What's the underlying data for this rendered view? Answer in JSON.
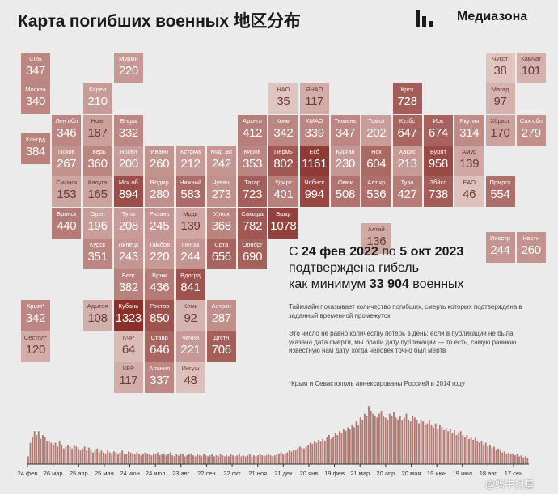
{
  "title": "Карта погибших военных 地区分布",
  "brand": "Медиазона",
  "headline": {
    "l1a": "С ",
    "d1": "24 фев 2022",
    "l1b": " по ",
    "d2": "5 окт 2023",
    "l2": "подтверждена гибель",
    "l3a": "как минимум ",
    "total": "33 904",
    "l3b": " военных"
  },
  "notes": {
    "n1": "Таймлайн показывает количество погибших, смерть которых подтверждена в заданный временной промежуток",
    "n2": "Это число не равно количеству потерь в день: если в публикации не была указана дата смерти, мы брали дату публикации — то есть, самую раннюю известную нам дату, когда человек точно был мертв",
    "n3": "*Крым и Севастополь аннексированы Россией в 2014 году"
  },
  "watermark": "@蚂牛柯基",
  "colors": {
    "light": "#f0e2de",
    "dark": "#8a2f2a",
    "bar": "#b07a72",
    "bg": "#ebebeb"
  },
  "regions": [
    {
      "abbr": "СПБ",
      "value": 347,
      "col": 0,
      "row": 0
    },
    {
      "abbr": "Мурмн",
      "value": 220,
      "col": 3,
      "row": 0
    },
    {
      "abbr": "Чукот",
      "value": 38,
      "col": 15,
      "row": 0
    },
    {
      "abbr": "Камчат",
      "value": 101,
      "col": 16,
      "row": 0
    },
    {
      "abbr": "Москва",
      "value": 340,
      "col": 0,
      "row": 1
    },
    {
      "abbr": "Карел",
      "value": 210,
      "col": 2,
      "row": 1
    },
    {
      "abbr": "НАО",
      "value": 35,
      "col": 8,
      "row": 1
    },
    {
      "abbr": "ЯНАО",
      "value": 117,
      "col": 9,
      "row": 1
    },
    {
      "abbr": "Крск",
      "value": 728,
      "col": 12,
      "row": 1
    },
    {
      "abbr": "Магад",
      "value": 97,
      "col": 15,
      "row": 1
    },
    {
      "abbr": "Лен обл",
      "value": 346,
      "col": 1,
      "row": 2
    },
    {
      "abbr": "Новг",
      "value": 187,
      "col": 2,
      "row": 2
    },
    {
      "abbr": "Влгда",
      "value": 332,
      "col": 3,
      "row": 2
    },
    {
      "abbr": "Архнгл",
      "value": 412,
      "col": 7,
      "row": 2
    },
    {
      "abbr": "Коми",
      "value": 342,
      "col": 8,
      "row": 2
    },
    {
      "abbr": "ХМАО",
      "value": 339,
      "col": 9,
      "row": 2
    },
    {
      "abbr": "Тюмень",
      "value": 347,
      "col": 10,
      "row": 2
    },
    {
      "abbr": "Томск",
      "value": 202,
      "col": 11,
      "row": 2
    },
    {
      "abbr": "Кузбс",
      "value": 647,
      "col": 12,
      "row": 2
    },
    {
      "abbr": "Ирк",
      "value": 674,
      "col": 13,
      "row": 2
    },
    {
      "abbr": "Якутия",
      "value": 314,
      "col": 14,
      "row": 2
    },
    {
      "abbr": "Хбрвск",
      "value": 170,
      "col": 15,
      "row": 2
    },
    {
      "abbr": "Сах обл",
      "value": 279,
      "col": 16,
      "row": 2
    },
    {
      "abbr": "Клнгрд",
      "value": 384,
      "col": 0,
      "row": 2.6
    },
    {
      "abbr": "Псков",
      "value": 267,
      "col": 1,
      "row": 3
    },
    {
      "abbr": "Тверь",
      "value": 360,
      "col": 2,
      "row": 3
    },
    {
      "abbr": "Ярсвл",
      "value": 200,
      "col": 3,
      "row": 3
    },
    {
      "abbr": "Ивано",
      "value": 260,
      "col": 4,
      "row": 3
    },
    {
      "abbr": "Кстрма",
      "value": 212,
      "col": 5,
      "row": 3
    },
    {
      "abbr": "Мар Эл",
      "value": 242,
      "col": 6,
      "row": 3
    },
    {
      "abbr": "Киров",
      "value": 353,
      "col": 7,
      "row": 3
    },
    {
      "abbr": "Пермь",
      "value": 802,
      "col": 8,
      "row": 3
    },
    {
      "abbr": "Екб",
      "value": 1161,
      "col": 9,
      "row": 3
    },
    {
      "abbr": "Курган",
      "value": 230,
      "col": 10,
      "row": 3
    },
    {
      "abbr": "Нск",
      "value": 604,
      "col": 11,
      "row": 3
    },
    {
      "abbr": "Хакас",
      "value": 213,
      "col": 12,
      "row": 3
    },
    {
      "abbr": "Бурят",
      "value": 958,
      "col": 13,
      "row": 3
    },
    {
      "abbr": "Амур",
      "value": 139,
      "col": 14,
      "row": 3
    },
    {
      "abbr": "Смлнск",
      "value": 153,
      "col": 1,
      "row": 4
    },
    {
      "abbr": "Калуга",
      "value": 165,
      "col": 2,
      "row": 4
    },
    {
      "abbr": "Мск об",
      "value": 894,
      "col": 3,
      "row": 4
    },
    {
      "abbr": "Влдмр",
      "value": 280,
      "col": 4,
      "row": 4
    },
    {
      "abbr": "Нижний",
      "value": 583,
      "col": 5,
      "row": 4
    },
    {
      "abbr": "Чуваш",
      "value": 273,
      "col": 6,
      "row": 4
    },
    {
      "abbr": "Татар",
      "value": 723,
      "col": 7,
      "row": 4
    },
    {
      "abbr": "Удмрт",
      "value": 401,
      "col": 8,
      "row": 4
    },
    {
      "abbr": "Члбнск",
      "value": 994,
      "col": 9,
      "row": 4
    },
    {
      "abbr": "Омск",
      "value": 508,
      "col": 10,
      "row": 4
    },
    {
      "abbr": "Алт кр",
      "value": 536,
      "col": 11,
      "row": 4
    },
    {
      "abbr": "Тува",
      "value": 427,
      "col": 12,
      "row": 4
    },
    {
      "abbr": "Збйкл",
      "value": 738,
      "col": 13,
      "row": 4
    },
    {
      "abbr": "ЕАО",
      "value": 46,
      "col": 14,
      "row": 4
    },
    {
      "abbr": "Прмрск",
      "value": 554,
      "col": 15,
      "row": 4
    },
    {
      "abbr": "Брянск",
      "value": 440,
      "col": 1,
      "row": 5
    },
    {
      "abbr": "Орел",
      "value": 196,
      "col": 2,
      "row": 5
    },
    {
      "abbr": "Тула",
      "value": 208,
      "col": 3,
      "row": 5
    },
    {
      "abbr": "Рязань",
      "value": 245,
      "col": 4,
      "row": 5
    },
    {
      "abbr": "Мрдв",
      "value": 139,
      "col": 5,
      "row": 5
    },
    {
      "abbr": "Улнск",
      "value": 368,
      "col": 6,
      "row": 5
    },
    {
      "abbr": "Самара",
      "value": 782,
      "col": 7,
      "row": 5
    },
    {
      "abbr": "Бшкр",
      "value": 1078,
      "col": 8,
      "row": 5
    },
    {
      "abbr": "Алтай",
      "value": 136,
      "col": 11,
      "row": 5.5
    },
    {
      "abbr": "Иностр",
      "value": 244,
      "col": 15,
      "row": 5.8
    },
    {
      "abbr": "Нвстн",
      "value": 260,
      "col": 16,
      "row": 5.8
    },
    {
      "abbr": "Курск",
      "value": 351,
      "col": 2,
      "row": 6
    },
    {
      "abbr": "Липецк",
      "value": 243,
      "col": 3,
      "row": 6
    },
    {
      "abbr": "Тамбов",
      "value": 220,
      "col": 4,
      "row": 6
    },
    {
      "abbr": "Пенза",
      "value": 244,
      "col": 5,
      "row": 6
    },
    {
      "abbr": "Срта",
      "value": 656,
      "col": 6,
      "row": 6
    },
    {
      "abbr": "Орнбрг",
      "value": 690,
      "col": 7,
      "row": 6
    },
    {
      "abbr": "Белг",
      "value": 382,
      "col": 3,
      "row": 7
    },
    {
      "abbr": "Врнж",
      "value": 436,
      "col": 4,
      "row": 7
    },
    {
      "abbr": "Вдлгрд",
      "value": 841,
      "col": 5,
      "row": 7
    },
    {
      "abbr": "Крым*",
      "value": 342,
      "col": 0,
      "row": 8
    },
    {
      "abbr": "Адыгея",
      "value": 108,
      "col": 2,
      "row": 8
    },
    {
      "abbr": "Кубань",
      "value": 1323,
      "col": 3,
      "row": 8
    },
    {
      "abbr": "Ростов",
      "value": 850,
      "col": 4,
      "row": 8
    },
    {
      "abbr": "Клмк",
      "value": 92,
      "col": 5,
      "row": 8
    },
    {
      "abbr": "Астрхн",
      "value": 287,
      "col": 6,
      "row": 8
    },
    {
      "abbr": "Сестпл*",
      "value": 120,
      "col": 0,
      "row": 9
    },
    {
      "abbr": "КЧР",
      "value": 64,
      "col": 3,
      "row": 9
    },
    {
      "abbr": "Ставр",
      "value": 646,
      "col": 4,
      "row": 9
    },
    {
      "abbr": "Чечня",
      "value": 221,
      "col": 5,
      "row": 9
    },
    {
      "abbr": "Дгстн",
      "value": 706,
      "col": 6,
      "row": 9
    },
    {
      "abbr": "КБР",
      "value": 117,
      "col": 3,
      "row": 10
    },
    {
      "abbr": "Алания",
      "value": 337,
      "col": 4,
      "row": 10
    },
    {
      "abbr": "Ингуш",
      "value": 48,
      "col": 5,
      "row": 10
    }
  ],
  "timeline": {
    "tick_labels": [
      "24 фев",
      "26 мар",
      "25 апр",
      "25 мая",
      "24 июн",
      "24 июл",
      "23 авг",
      "22 сен",
      "22 окт",
      "21 ноя",
      "21 дек",
      "20 янв",
      "19 фев",
      "21 мар",
      "20 апр",
      "20 мая",
      "19 июн",
      "19 июл",
      "18 авг",
      "17 сен"
    ]
  },
  "chart_data": {
    "type": "bar",
    "title": "",
    "xlabel": "",
    "ylabel": "",
    "note": "Daily confirmed deaths timeline (values estimated; no y-axis shown)",
    "x_start": "2022-02-24",
    "x_end": "2023-10-05",
    "values": [
      8,
      22,
      28,
      34,
      30,
      34,
      26,
      30,
      28,
      24,
      24,
      22,
      20,
      22,
      18,
      24,
      20,
      16,
      18,
      20,
      18,
      16,
      20,
      18,
      16,
      14,
      16,
      18,
      15,
      17,
      14,
      12,
      14,
      16,
      12,
      14,
      12,
      11,
      14,
      12,
      11,
      13,
      12,
      10,
      12,
      14,
      11,
      10,
      13,
      12,
      11,
      10,
      12,
      11,
      9,
      10,
      12,
      11,
      10,
      9,
      11,
      10,
      12,
      9,
      10,
      11,
      9,
      10,
      12,
      9,
      8,
      10,
      9,
      11,
      10,
      8,
      9,
      10,
      11,
      9,
      8,
      10,
      9,
      8,
      10,
      9,
      8,
      9,
      10,
      8,
      9,
      8,
      10,
      9,
      8,
      9,
      8,
      10,
      9,
      8,
      9,
      10,
      8,
      9,
      8,
      9,
      10,
      8,
      9,
      8,
      9,
      10,
      9,
      8,
      9,
      10,
      9,
      8,
      9,
      10,
      11,
      12,
      10,
      11,
      12,
      14,
      13,
      15,
      14,
      16,
      18,
      17,
      16,
      18,
      20,
      22,
      21,
      24,
      22,
      25,
      23,
      26,
      24,
      28,
      30,
      26,
      28,
      32,
      30,
      34,
      32,
      36,
      34,
      38,
      36,
      40,
      38,
      44,
      40,
      48,
      45,
      52,
      50,
      60,
      55,
      52,
      50,
      48,
      52,
      55,
      50,
      48,
      46,
      52,
      50,
      54,
      48,
      46,
      50,
      45,
      48,
      52,
      46,
      44,
      50,
      48,
      45,
      42,
      46,
      44,
      40,
      42,
      45,
      40,
      38,
      42,
      36,
      40,
      38,
      35,
      37,
      34,
      36,
      32,
      35,
      30,
      32,
      34,
      30,
      28,
      30,
      26,
      28,
      25,
      27,
      24,
      22,
      24,
      20,
      22,
      18,
      20,
      17,
      18,
      15,
      16,
      14,
      12,
      13,
      11,
      12,
      10,
      11,
      9,
      10,
      8,
      9,
      7,
      8,
      6
    ]
  }
}
